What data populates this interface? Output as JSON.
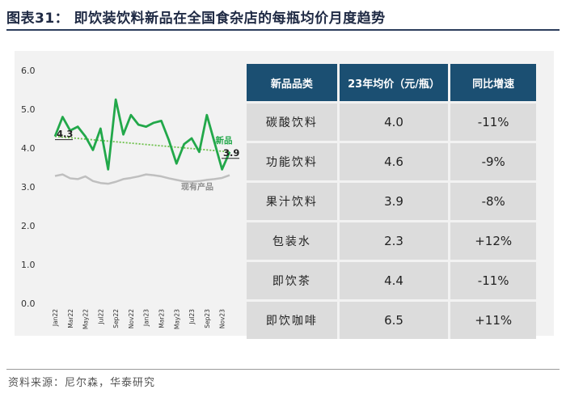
{
  "figure_title": "图表31：  即饮装饮料新品在全国食杂店的每瓶均价月度趋势",
  "source": "资料来源：尼尔森，华泰研究",
  "colors": {
    "new_line": "#22a84a",
    "existing_line": "#bfbfbf",
    "header_bg": "#1b4f72",
    "cell_bg": "#dcdcdc"
  },
  "chart_data": {
    "type": "line",
    "title": "",
    "xlabel": "",
    "ylabel": "",
    "ylim": [
      0,
      6
    ],
    "yticks": [
      "0.0",
      "1.0",
      "2.0",
      "3.0",
      "4.0",
      "5.0",
      "6.0"
    ],
    "x_tick_labels": [
      "Jan22",
      "Mar22",
      "May22",
      "Jul22",
      "Sep22",
      "Nov22",
      "Jan23",
      "Mar23",
      "May23",
      "Jul23",
      "Sep23",
      "Nov23"
    ],
    "series": [
      {
        "name": "新品",
        "values": [
          4.3,
          4.8,
          4.45,
          4.55,
          4.3,
          3.95,
          4.5,
          3.45,
          5.25,
          4.35,
          4.85,
          4.6,
          4.55,
          4.65,
          4.7,
          4.2,
          3.6,
          4.1,
          4.25,
          3.9,
          4.85,
          4.15,
          3.45,
          3.9
        ]
      },
      {
        "name": "现有产品",
        "values": [
          3.28,
          3.32,
          3.22,
          3.2,
          3.27,
          3.15,
          3.1,
          3.08,
          3.13,
          3.2,
          3.23,
          3.27,
          3.32,
          3.3,
          3.27,
          3.22,
          3.18,
          3.14,
          3.13,
          3.15,
          3.18,
          3.2,
          3.23,
          3.3
        ]
      }
    ],
    "trend_start_label": "4.3",
    "trend_end_label": "3.9",
    "trend_start_value": 4.3,
    "trend_end_value": 3.9
  },
  "table": {
    "headers": [
      "新品品类",
      "23年均价（元/瓶）",
      "同比增速"
    ],
    "rows": [
      [
        "碳酸饮料",
        "4.0",
        "-11%"
      ],
      [
        "功能饮料",
        "4.6",
        "-9%"
      ],
      [
        "果汁饮料",
        "3.9",
        "-8%"
      ],
      [
        "包装水",
        "2.3",
        "+12%"
      ],
      [
        "即饮茶",
        "4.4",
        "-11%"
      ],
      [
        "即饮咖啡",
        "6.5",
        "+11%"
      ]
    ]
  }
}
